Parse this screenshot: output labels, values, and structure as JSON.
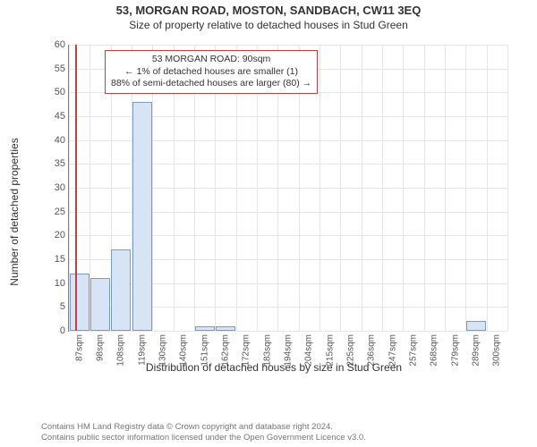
{
  "header": {
    "title1": "53, MORGAN ROAD, MOSTON, SANDBACH, CW11 3EQ",
    "title2": "Size of property relative to detached houses in Stud Green"
  },
  "chart": {
    "type": "histogram",
    "ylabel": "Number of detached properties",
    "xlabel": "Distribution of detached houses by size in Stud Green",
    "ylim": [
      0,
      60
    ],
    "ytick_step": 5,
    "xticks": [
      "87sqm",
      "98sqm",
      "108sqm",
      "119sqm",
      "130sqm",
      "140sqm",
      "151sqm",
      "162sqm",
      "172sqm",
      "183sqm",
      "194sqm",
      "204sqm",
      "215sqm",
      "225sqm",
      "236sqm",
      "247sqm",
      "257sqm",
      "268sqm",
      "279sqm",
      "289sqm",
      "300sqm"
    ],
    "bars": [
      12,
      11,
      17,
      48,
      0,
      0,
      1,
      1,
      0,
      0,
      0,
      0,
      0,
      0,
      0,
      0,
      0,
      0,
      0,
      2
    ],
    "bar_fill": "#d6e4f5",
    "bar_stroke": "#7a9bc4",
    "grid_color": "#e6e6e6",
    "background_color": "#ffffff",
    "marker": {
      "value_sqm": 90,
      "xmin_sqm": 87,
      "xmax_sqm": 300,
      "color": "#c43f3f"
    },
    "annotation": {
      "line1": "53 MORGAN ROAD: 90sqm",
      "line2": "← 1% of detached houses are smaller (1)",
      "line3": "88% of semi-detached houses are larger (80) →",
      "border_color": "#c43f3f"
    }
  },
  "footer": {
    "line1": "Contains HM Land Registry data © Crown copyright and database right 2024.",
    "line2": "Contains public sector information licensed under the Open Government Licence v3.0."
  }
}
